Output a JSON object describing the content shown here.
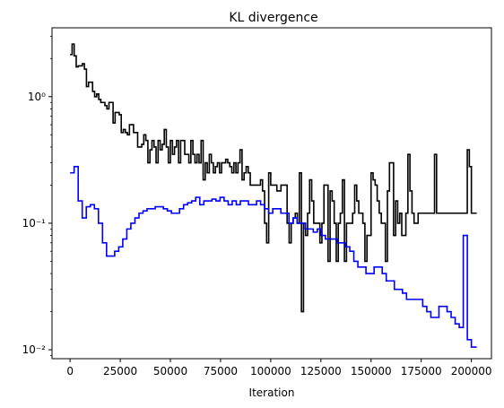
{
  "chart_data": {
    "type": "line",
    "step": true,
    "title": "KL divergence",
    "xlabel": "Iteration",
    "ylabel": "",
    "yscale": "log",
    "xlim": [
      -9000,
      210000
    ],
    "ylim": [
      0.0085,
      3.5
    ],
    "grid": false,
    "legend": "none",
    "x_ticks": [
      0,
      25000,
      50000,
      75000,
      100000,
      125000,
      150000,
      175000,
      200000
    ],
    "x_tick_labels": [
      "0",
      "25000",
      "50000",
      "75000",
      "100000",
      "125000",
      "150000",
      "175000",
      "200000"
    ],
    "y_ticks": [
      0.01,
      0.1,
      1
    ],
    "y_tick_labels": [
      "10⁻²",
      "10⁻¹",
      "10⁰"
    ],
    "x_start": 0,
    "x_step": 2000,
    "series": [
      {
        "color": "#000000",
        "values": [
          2.15,
          2.6,
          2.1,
          1.72,
          1.75,
          1.75,
          1.82,
          1.65,
          1.2,
          1.3,
          1.3,
          1.1,
          1.0,
          1.05,
          0.95,
          0.9,
          0.9,
          0.85,
          0.8,
          0.9,
          0.9,
          0.62,
          0.75,
          0.75,
          0.72,
          0.52,
          0.55,
          0.52,
          0.5,
          0.6,
          0.6,
          0.52,
          0.52,
          0.4,
          0.4,
          0.42,
          0.5,
          0.45,
          0.3,
          0.38,
          0.45,
          0.4,
          0.3,
          0.45,
          0.38,
          0.42,
          0.55,
          0.4,
          0.3,
          0.45,
          0.35,
          0.4,
          0.45,
          0.3,
          0.45,
          0.45,
          0.35,
          0.35,
          0.3,
          0.45,
          0.35,
          0.3,
          0.35,
          0.3,
          0.45,
          0.22,
          0.3,
          0.25,
          0.35,
          0.3,
          0.25,
          0.28,
          0.3,
          0.25,
          0.3,
          0.3,
          0.32,
          0.3,
          0.28,
          0.25,
          0.3,
          0.25,
          0.3,
          0.38,
          0.22,
          0.25,
          0.28,
          0.25,
          0.2,
          0.2,
          0.2,
          0.2,
          0.2,
          0.22,
          0.18,
          0.1,
          0.07,
          0.25,
          0.2,
          0.2,
          0.2,
          0.18,
          0.18,
          0.2,
          0.2,
          0.2,
          0.1,
          0.07,
          0.1,
          0.11,
          0.12,
          0.1,
          0.25,
          0.02,
          0.1,
          0.08,
          0.12,
          0.22,
          0.15,
          0.1,
          0.1,
          0.1,
          0.07,
          0.1,
          0.2,
          0.2,
          0.05,
          0.18,
          0.15,
          0.1,
          0.05,
          0.1,
          0.12,
          0.22,
          0.05,
          0.1,
          0.1,
          0.1,
          0.12,
          0.2,
          0.15,
          0.12,
          0.12,
          0.1,
          0.05,
          0.08,
          0.08,
          0.25,
          0.22,
          0.2,
          0.15,
          0.12,
          0.1,
          0.1,
          0.05,
          0.18,
          0.3,
          0.3,
          0.08,
          0.15,
          0.1,
          0.12,
          0.08,
          0.08,
          0.12,
          0.35,
          0.18,
          0.12,
          0.1,
          0.1,
          0.12,
          0.12,
          0.12,
          0.12,
          0.12,
          0.12,
          0.12,
          0.12,
          0.35,
          0.12,
          0.12,
          0.12,
          0.12,
          0.12,
          0.12,
          0.12,
          0.12,
          0.12,
          0.12,
          0.12,
          0.12,
          0.12,
          0.12,
          0.12,
          0.38,
          0.28,
          0.12
        ]
      },
      {
        "color": "#0000ff",
        "values": [
          0.25,
          0.28,
          0.15,
          0.11,
          0.135,
          0.14,
          0.13,
          0.1,
          0.07,
          0.055,
          0.055,
          0.06,
          0.065,
          0.075,
          0.09,
          0.1,
          0.11,
          0.12,
          0.125,
          0.13,
          0.13,
          0.135,
          0.135,
          0.13,
          0.125,
          0.12,
          0.12,
          0.13,
          0.14,
          0.145,
          0.15,
          0.16,
          0.14,
          0.15,
          0.15,
          0.155,
          0.15,
          0.16,
          0.15,
          0.14,
          0.15,
          0.14,
          0.15,
          0.15,
          0.14,
          0.14,
          0.15,
          0.14,
          0.13,
          0.12,
          0.13,
          0.13,
          0.12,
          0.12,
          0.1,
          0.11,
          0.1,
          0.1,
          0.09,
          0.09,
          0.085,
          0.09,
          0.08,
          0.075,
          0.075,
          0.075,
          0.07,
          0.07,
          0.065,
          0.06,
          0.05,
          0.045,
          0.045,
          0.04,
          0.04,
          0.045,
          0.045,
          0.04,
          0.035,
          0.035,
          0.03,
          0.03,
          0.028,
          0.025,
          0.025,
          0.025,
          0.025,
          0.022,
          0.02,
          0.018,
          0.018,
          0.022,
          0.022,
          0.02,
          0.018,
          0.016,
          0.015,
          0.08,
          0.012,
          0.0105
        ]
      }
    ]
  }
}
